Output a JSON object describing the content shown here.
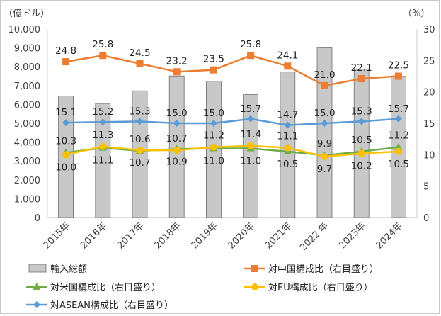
{
  "chart_data": {
    "type": "bar+line",
    "left_axis_unit": "（億ドル）",
    "right_axis_unit": "（%）",
    "categories": [
      "2015年",
      "2016年",
      "2017年",
      "2018年",
      "2019年",
      "2020年",
      "2021年",
      "2022 年",
      "2023年",
      "2024年"
    ],
    "left_ylim": [
      0,
      10000
    ],
    "left_ticks": [
      "0",
      "1,000",
      "2,000",
      "3,000",
      "4,000",
      "5,000",
      "6,000",
      "7,000",
      "8,000",
      "9,000",
      "10,000"
    ],
    "right_ylim": [
      0,
      30
    ],
    "right_ticks": [
      "0",
      "5",
      "10",
      "15",
      "20",
      "25",
      "30"
    ],
    "grid": false,
    "legend_position": "bottom",
    "bars": {
      "name": "輸入総額",
      "color": "#c8c8c8",
      "values": [
        6450,
        6050,
        6720,
        7510,
        7230,
        6520,
        7720,
        9000,
        7880,
        7490
      ]
    },
    "series": [
      {
        "name": "対中国構成比（右目盛り）",
        "color": "#ec7d31",
        "marker": "square",
        "values": [
          24.8,
          25.8,
          24.5,
          23.2,
          23.5,
          25.8,
          24.1,
          21.0,
          22.1,
          22.5
        ],
        "labels": [
          "24.8",
          "25.8",
          "24.5",
          "23.2",
          "23.5",
          "25.8",
          "24.1",
          "21.0",
          "22.1",
          "22.5"
        ]
      },
      {
        "name": "対米国構成比（右目盛り）",
        "color": "#70ad47",
        "marker": "triangle",
        "values": [
          10.3,
          11.1,
          10.6,
          10.9,
          11.0,
          11.0,
          10.5,
          9.9,
          10.5,
          11.2
        ],
        "labels": [
          "10.3",
          "11.1",
          "10.6",
          "10.9",
          "11.0",
          "11.0",
          "10.5",
          "9.9",
          "10.5",
          "11.2"
        ]
      },
      {
        "name": "対EU構成比（右目盛り）",
        "color": "#ffc000",
        "marker": "circle",
        "values": [
          10.0,
          11.3,
          10.7,
          10.7,
          11.2,
          11.4,
          11.1,
          9.7,
          10.2,
          10.5
        ],
        "labels": [
          "10.0",
          "11.3",
          "10.7",
          "10.7",
          "11.2",
          "11.4",
          "11.1",
          "9.7",
          "10.2",
          "10.5"
        ]
      },
      {
        "name": "対ASEAN構成比（右目盛り）",
        "color": "#5b9bd5",
        "marker": "diamond",
        "values": [
          15.1,
          15.2,
          15.3,
          15.0,
          15.0,
          15.7,
          14.7,
          15.0,
          15.3,
          15.7
        ],
        "labels": [
          "15.1",
          "15.2",
          "15.3",
          "15.0",
          "15.0",
          "15.7",
          "14.7",
          "15.0",
          "15.3",
          "15.7"
        ]
      }
    ]
  }
}
